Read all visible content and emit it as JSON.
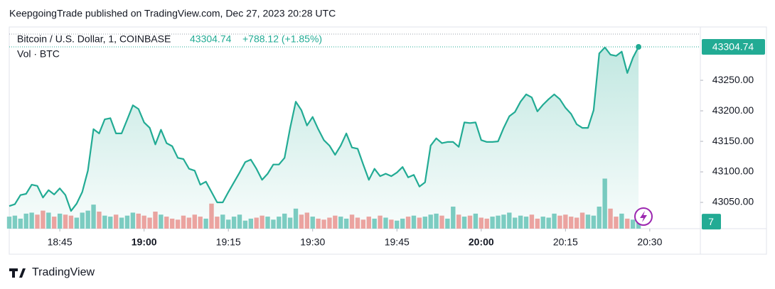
{
  "header": "KeepgoingTrade published on TradingView.com, Dec 27, 2023 20:28 UTC",
  "footer": "TradingView",
  "chart_data": {
    "type": "area",
    "title": "Bitcoin / U.S. Dollar, 1, COINBASE",
    "change": "+788.12 (+1.85%)",
    "volume_title": "Vol · BTC",
    "x": [
      "18:36",
      "18:37",
      "18:38",
      "18:39",
      "18:40",
      "18:41",
      "18:42",
      "18:43",
      "18:44",
      "18:45",
      "18:46",
      "18:47",
      "18:48",
      "18:49",
      "18:50",
      "18:51",
      "18:52",
      "18:53",
      "18:54",
      "18:55",
      "18:56",
      "18:57",
      "18:58",
      "18:59",
      "19:00",
      "19:01",
      "19:02",
      "19:03",
      "19:04",
      "19:05",
      "19:06",
      "19:07",
      "19:08",
      "19:09",
      "19:10",
      "19:11",
      "19:12",
      "19:13",
      "19:14",
      "19:15",
      "19:16",
      "19:17",
      "19:18",
      "19:19",
      "19:20",
      "19:21",
      "19:22",
      "19:23",
      "19:24",
      "19:25",
      "19:26",
      "19:27",
      "19:28",
      "19:29",
      "19:30",
      "19:31",
      "19:32",
      "19:33",
      "19:34",
      "19:35",
      "19:36",
      "19:37",
      "19:38",
      "19:39",
      "19:40",
      "19:41",
      "19:42",
      "19:43",
      "19:44",
      "19:45",
      "19:46",
      "19:47",
      "19:48",
      "19:49",
      "19:50",
      "19:51",
      "19:52",
      "19:53",
      "19:54",
      "19:55",
      "19:56",
      "19:57",
      "19:58",
      "19:59",
      "20:00",
      "20:01",
      "20:02",
      "20:03",
      "20:04",
      "20:05",
      "20:06",
      "20:07",
      "20:08",
      "20:09",
      "20:10",
      "20:11",
      "20:12",
      "20:13",
      "20:14",
      "20:15",
      "20:16",
      "20:17",
      "20:18",
      "20:19",
      "20:20",
      "20:21",
      "20:22",
      "20:23",
      "20:24",
      "20:25",
      "20:26",
      "20:27",
      "20:28"
    ],
    "series": [
      {
        "name": "Price",
        "color": "#22ab94",
        "values": [
          43044,
          43047,
          43062,
          43064,
          43079,
          43077,
          43058,
          43070,
          43063,
          43073,
          43062,
          43036,
          43048,
          43067,
          43102,
          43170,
          43163,
          43186,
          43188,
          43163,
          43163,
          43186,
          43209,
          43203,
          43181,
          43172,
          43145,
          43169,
          43147,
          43142,
          43123,
          43121,
          43105,
          43102,
          43079,
          43084,
          43067,
          43050,
          43050,
          43067,
          43083,
          43099,
          43116,
          43120,
          43105,
          43087,
          43097,
          43112,
          43112,
          43123,
          43172,
          43215,
          43201,
          43176,
          43190,
          43170,
          43152,
          43143,
          43128,
          43143,
          43163,
          43140,
          43138,
          43112,
          43087,
          43105,
          43093,
          43097,
          43093,
          43099,
          43108,
          43091,
          43095,
          43076,
          43083,
          43143,
          43155,
          43147,
          43149,
          43149,
          43141,
          43181,
          43180,
          43181,
          43152,
          43149,
          43149,
          43150,
          43172,
          43191,
          43198,
          43215,
          43227,
          43222,
          43199,
          43210,
          43219,
          43227,
          43219,
          43205,
          43195,
          43178,
          43172,
          43172,
          43201,
          43294,
          43304,
          43292,
          43290,
          43297,
          43262,
          43287,
          43304.74
        ]
      },
      {
        "name": "Vol",
        "axis": "y2",
        "colors": [
          "#7fcdc3",
          "#f3a3a0"
        ],
        "values": [
          12,
          13,
          10,
          15,
          16,
          14,
          18,
          16,
          12,
          15,
          14,
          13,
          11,
          16,
          18,
          24,
          17,
          13,
          12,
          14,
          11,
          13,
          16,
          15,
          13,
          11,
          17,
          14,
          12,
          10,
          9,
          13,
          11,
          14,
          12,
          10,
          25,
          12,
          14,
          9,
          12,
          14,
          8,
          10,
          11,
          13,
          12,
          9,
          12,
          15,
          11,
          20,
          14,
          16,
          12,
          10,
          9,
          11,
          13,
          12,
          10,
          14,
          11,
          9,
          12,
          10,
          13,
          11,
          9,
          8,
          10,
          12,
          13,
          11,
          12,
          14,
          15,
          13,
          10,
          22,
          14,
          12,
          13,
          15,
          11,
          10,
          12,
          13,
          14,
          16,
          11,
          13,
          12,
          14,
          10,
          12,
          11,
          15,
          13,
          14,
          12,
          11,
          16,
          14,
          13,
          22,
          50,
          20,
          12,
          15,
          10,
          9,
          7
        ]
      }
    ],
    "xlim": [
      "18:36",
      "20:39"
    ],
    "xticks": [
      "18:45",
      "19:00",
      "19:15",
      "19:30",
      "19:45",
      "20:00",
      "20:15",
      "20:30"
    ],
    "ylim": [
      43007,
      43335
    ],
    "yticks": [
      {
        "value": 43050,
        "label": "43050.00"
      },
      {
        "value": 43100,
        "label": "43100.00"
      },
      {
        "value": 43150,
        "label": "43150.00"
      },
      {
        "value": 43200,
        "label": "43200.00"
      },
      {
        "value": 43250,
        "label": "43250.00"
      }
    ],
    "y2lim": [
      0,
      200
    ]
  }
}
